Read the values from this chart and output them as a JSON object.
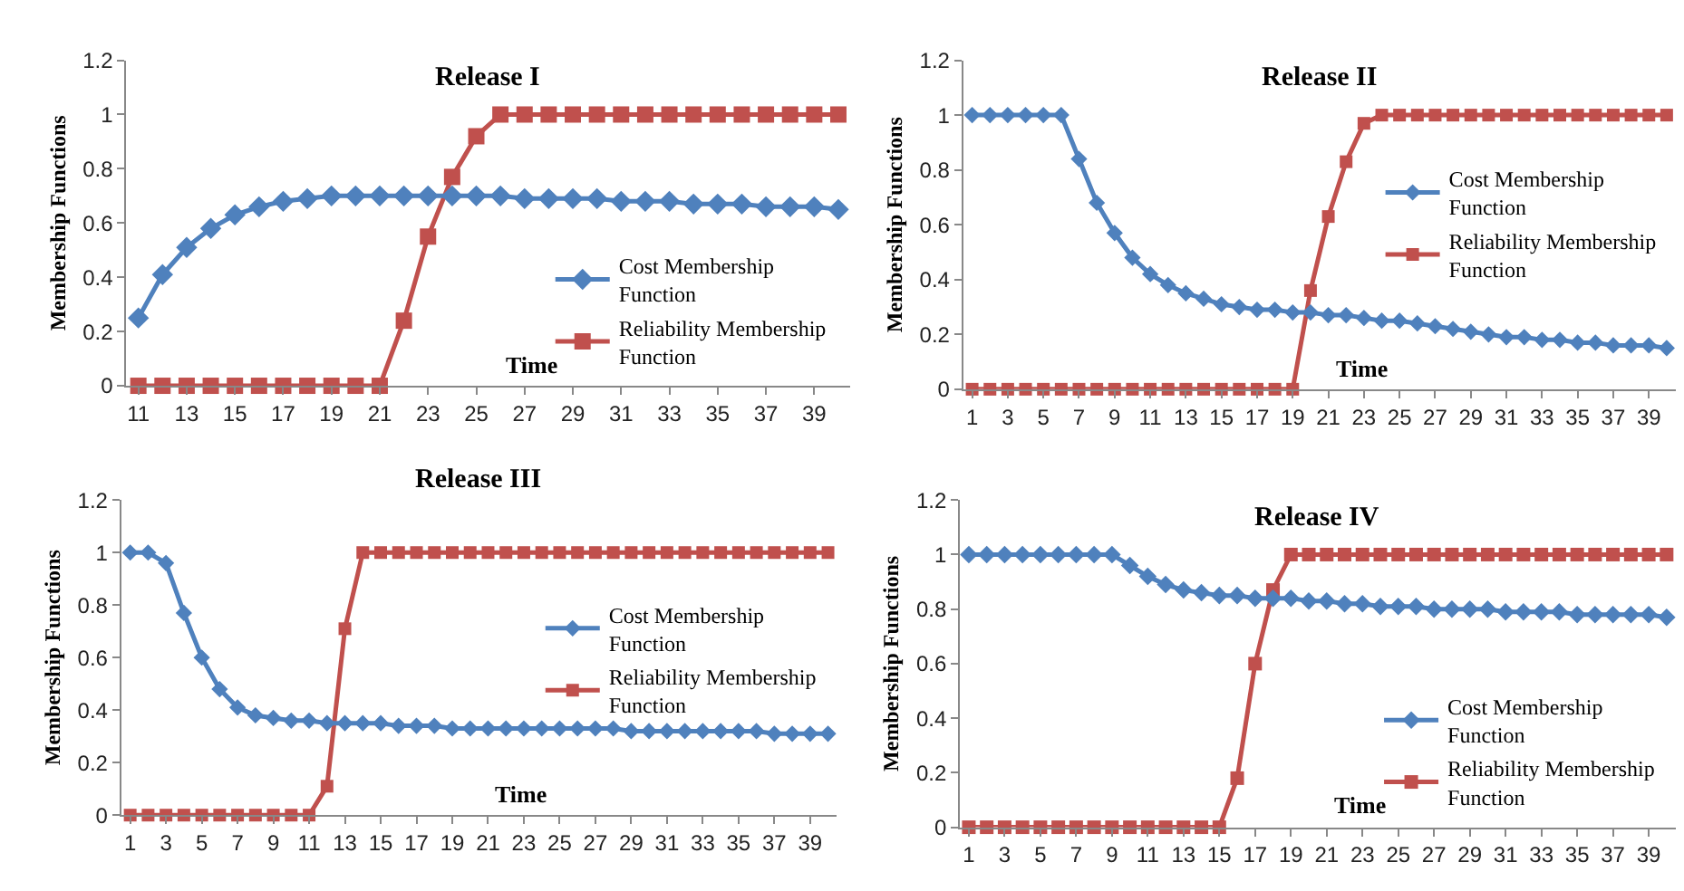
{
  "chart_data": [
    {
      "type": "line",
      "title": "Release I",
      "ylabel": "Membership Functions",
      "xlabel": "Time",
      "x": [
        11,
        12,
        13,
        14,
        15,
        16,
        17,
        18,
        19,
        20,
        21,
        22,
        23,
        24,
        25,
        26,
        27,
        28,
        29,
        30,
        31,
        32,
        33,
        34,
        35,
        36,
        37,
        38,
        39,
        40
      ],
      "xlim": [
        10.5,
        40.5
      ],
      "xticks": [
        11,
        13,
        15,
        17,
        19,
        21,
        23,
        25,
        27,
        29,
        31,
        33,
        35,
        37,
        39
      ],
      "ylim": [
        0,
        1.2
      ],
      "yticks": [
        0,
        0.2,
        0.4,
        0.6,
        0.8,
        1,
        1.2
      ],
      "grid": false,
      "legend": "bottom right",
      "line_style": "solid",
      "series": [
        {
          "name": "Cost Membership Function",
          "color": "#4f81bd",
          "marker": "diamond",
          "values": [
            0.25,
            0.41,
            0.51,
            0.58,
            0.63,
            0.66,
            0.68,
            0.69,
            0.7,
            0.7,
            0.7,
            0.7,
            0.7,
            0.7,
            0.7,
            0.7,
            0.69,
            0.69,
            0.69,
            0.69,
            0.68,
            0.68,
            0.68,
            0.67,
            0.67,
            0.67,
            0.66,
            0.66,
            0.66,
            0.65
          ]
        },
        {
          "name": "Reliability Membership Function",
          "color": "#c0504d",
          "marker": "square",
          "values": [
            0,
            0,
            0,
            0,
            0,
            0,
            0,
            0,
            0,
            0,
            0,
            0.24,
            0.55,
            0.77,
            0.92,
            1,
            1,
            1,
            1,
            1,
            1,
            1,
            1,
            1,
            1,
            1,
            1,
            1,
            1,
            1
          ]
        }
      ]
    },
    {
      "type": "line",
      "title": "Release II",
      "ylabel": "Membership Functions",
      "xlabel": "Time",
      "x": [
        1,
        2,
        3,
        4,
        5,
        6,
        7,
        8,
        9,
        10,
        11,
        12,
        13,
        14,
        15,
        16,
        17,
        18,
        19,
        20,
        21,
        22,
        23,
        24,
        25,
        26,
        27,
        28,
        29,
        30,
        31,
        32,
        33,
        34,
        35,
        36,
        37,
        38,
        39,
        40
      ],
      "xlim": [
        0.5,
        40.5
      ],
      "xticks": [
        1,
        3,
        5,
        7,
        9,
        11,
        13,
        15,
        17,
        19,
        21,
        23,
        25,
        27,
        29,
        31,
        33,
        35,
        37,
        39
      ],
      "ylim": [
        0,
        1.2
      ],
      "yticks": [
        0,
        0.2,
        0.4,
        0.6,
        0.8,
        1,
        1.2
      ],
      "grid": false,
      "legend": "right",
      "line_style": "solid",
      "series": [
        {
          "name": "Cost Membership Function",
          "color": "#4f81bd",
          "marker": "diamond",
          "values": [
            1,
            1,
            1,
            1,
            1,
            1,
            0.84,
            0.68,
            0.57,
            0.48,
            0.42,
            0.38,
            0.35,
            0.33,
            0.31,
            0.3,
            0.29,
            0.29,
            0.28,
            0.28,
            0.27,
            0.27,
            0.26,
            0.25,
            0.25,
            0.24,
            0.23,
            0.22,
            0.21,
            0.2,
            0.19,
            0.19,
            0.18,
            0.18,
            0.17,
            0.17,
            0.16,
            0.16,
            0.16,
            0.15
          ]
        },
        {
          "name": "Reliability Membership Function",
          "color": "#c0504d",
          "marker": "square",
          "values": [
            0,
            0,
            0,
            0,
            0,
            0,
            0,
            0,
            0,
            0,
            0,
            0,
            0,
            0,
            0,
            0,
            0,
            0,
            0,
            0.36,
            0.63,
            0.83,
            0.97,
            1,
            1,
            1,
            1,
            1,
            1,
            1,
            1,
            1,
            1,
            1,
            1,
            1,
            1,
            1,
            1,
            1
          ]
        }
      ]
    },
    {
      "type": "line",
      "title": "Release III",
      "ylabel": "Membership Functions",
      "xlabel": "Time",
      "x": [
        1,
        2,
        3,
        4,
        5,
        6,
        7,
        8,
        9,
        10,
        11,
        12,
        13,
        14,
        15,
        16,
        17,
        18,
        19,
        20,
        21,
        22,
        23,
        24,
        25,
        26,
        27,
        28,
        29,
        30,
        31,
        32,
        33,
        34,
        35,
        36,
        37,
        38,
        39,
        40
      ],
      "xlim": [
        0.5,
        40.5
      ],
      "xticks": [
        1,
        3,
        5,
        7,
        9,
        11,
        13,
        15,
        17,
        19,
        21,
        23,
        25,
        27,
        29,
        31,
        33,
        35,
        37,
        39
      ],
      "ylim": [
        0,
        1.2
      ],
      "yticks": [
        0,
        0.2,
        0.4,
        0.6,
        0.8,
        1,
        1.2
      ],
      "grid": false,
      "legend": "right",
      "line_style": "solid",
      "series": [
        {
          "name": "Cost Membership Function",
          "color": "#4f81bd",
          "marker": "diamond",
          "values": [
            1,
            1,
            0.96,
            0.77,
            0.6,
            0.48,
            0.41,
            0.38,
            0.37,
            0.36,
            0.36,
            0.35,
            0.35,
            0.35,
            0.35,
            0.34,
            0.34,
            0.34,
            0.33,
            0.33,
            0.33,
            0.33,
            0.33,
            0.33,
            0.33,
            0.33,
            0.33,
            0.33,
            0.32,
            0.32,
            0.32,
            0.32,
            0.32,
            0.32,
            0.32,
            0.32,
            0.31,
            0.31,
            0.31,
            0.31
          ]
        },
        {
          "name": "Reliability Membership Function",
          "color": "#c0504d",
          "marker": "square",
          "values": [
            0,
            0,
            0,
            0,
            0,
            0,
            0,
            0,
            0,
            0,
            0,
            0.11,
            0.71,
            1,
            1,
            1,
            1,
            1,
            1,
            1,
            1,
            1,
            1,
            1,
            1,
            1,
            1,
            1,
            1,
            1,
            1,
            1,
            1,
            1,
            1,
            1,
            1,
            1,
            1,
            1
          ]
        }
      ]
    },
    {
      "type": "line",
      "title": "Release IV",
      "ylabel": "Membership Functions",
      "xlabel": "Time",
      "x": [
        1,
        2,
        3,
        4,
        5,
        6,
        7,
        8,
        9,
        10,
        11,
        12,
        13,
        14,
        15,
        16,
        17,
        18,
        19,
        20,
        21,
        22,
        23,
        24,
        25,
        26,
        27,
        28,
        29,
        30,
        31,
        32,
        33,
        34,
        35,
        36,
        37,
        38,
        39,
        40
      ],
      "xlim": [
        0.5,
        40.5
      ],
      "xticks": [
        1,
        3,
        5,
        7,
        9,
        11,
        13,
        15,
        17,
        19,
        21,
        23,
        25,
        27,
        29,
        31,
        33,
        35,
        37,
        39
      ],
      "ylim": [
        0,
        1.2
      ],
      "yticks": [
        0,
        0.2,
        0.4,
        0.6,
        0.8,
        1,
        1.2
      ],
      "grid": false,
      "legend": "bottom right",
      "line_style": "solid",
      "series": [
        {
          "name": "Cost Membership Function",
          "color": "#4f81bd",
          "marker": "diamond",
          "values": [
            1,
            1,
            1,
            1,
            1,
            1,
            1,
            1,
            1,
            0.96,
            0.92,
            0.89,
            0.87,
            0.86,
            0.85,
            0.85,
            0.84,
            0.84,
            0.84,
            0.83,
            0.83,
            0.82,
            0.82,
            0.81,
            0.81,
            0.81,
            0.8,
            0.8,
            0.8,
            0.8,
            0.79,
            0.79,
            0.79,
            0.79,
            0.78,
            0.78,
            0.78,
            0.78,
            0.78,
            0.77
          ]
        },
        {
          "name": "Reliability Membership Function",
          "color": "#c0504d",
          "marker": "square",
          "values": [
            0,
            0,
            0,
            0,
            0,
            0,
            0,
            0,
            0,
            0,
            0,
            0,
            0,
            0,
            0,
            0.18,
            0.6,
            0.87,
            1,
            1,
            1,
            1,
            1,
            1,
            1,
            1,
            1,
            1,
            1,
            1,
            1,
            1,
            1,
            1,
            1,
            1,
            1,
            1,
            1,
            1
          ]
        }
      ]
    }
  ]
}
